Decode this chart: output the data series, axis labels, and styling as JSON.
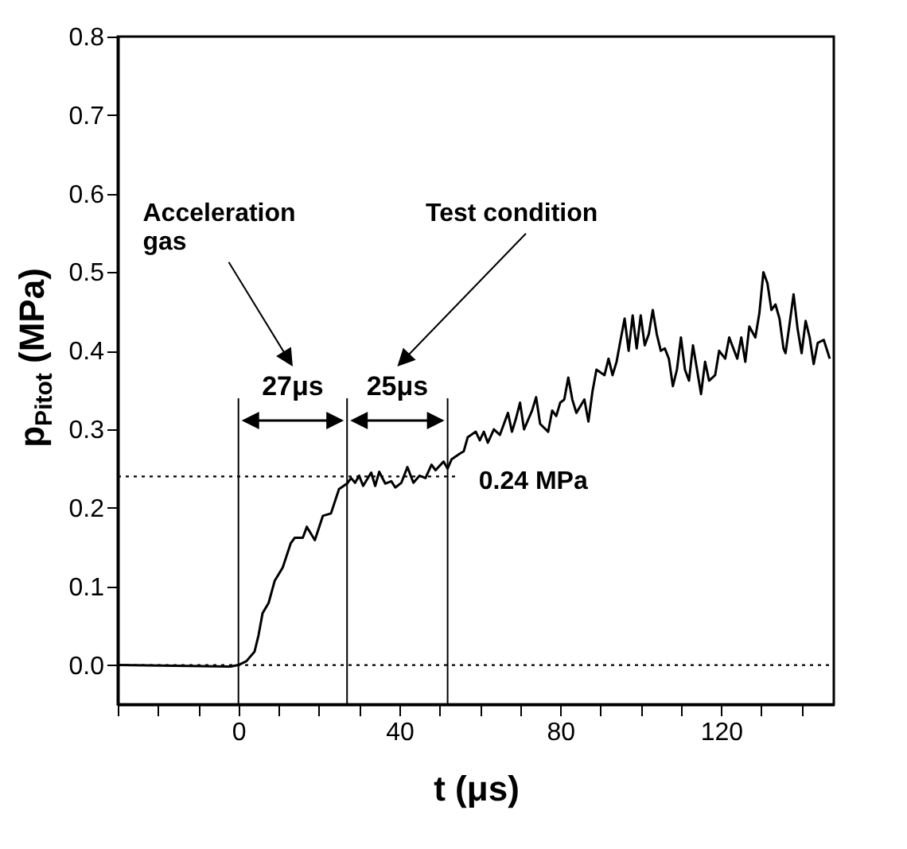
{
  "chart_data": {
    "type": "line",
    "xlabel": "t (μs)",
    "ylabel": "p$_{Pitot}$ (MPa)",
    "xlim": [
      -30,
      148
    ],
    "ylim": [
      -0.05,
      0.8
    ],
    "xticks": [
      {
        "value": -30,
        "label": null
      },
      {
        "value": -20,
        "label": null
      },
      {
        "value": -10,
        "label": null
      },
      0,
      {
        "value": 10,
        "label": null
      },
      {
        "value": 20,
        "label": null
      },
      {
        "value": 30,
        "label": null
      },
      40,
      {
        "value": 50,
        "label": null
      },
      {
        "value": 60,
        "label": null
      },
      {
        "value": 70,
        "label": null
      },
      80,
      {
        "value": 90,
        "label": null
      },
      {
        "value": 100,
        "label": null
      },
      {
        "value": 110,
        "label": null
      },
      120,
      {
        "value": 130,
        "label": null
      },
      {
        "value": 140,
        "label": null
      }
    ],
    "yticks": [
      {
        "value": 0,
        "label": "0.0"
      },
      0.1,
      0.2,
      0.3,
      0.4,
      0.5,
      0.6,
      0.7,
      0.8
    ],
    "x": [
      -30,
      -2,
      0,
      2,
      4,
      5,
      6,
      7.5,
      9,
      11,
      13,
      14,
      16,
      17,
      19,
      21,
      23,
      25,
      27,
      28,
      29,
      30,
      31,
      33,
      34,
      35,
      36.5,
      38,
      39,
      40.5,
      42,
      43.5,
      45,
      46.5,
      48,
      49,
      51,
      52,
      53,
      55,
      56,
      57,
      59,
      60,
      61,
      62,
      63.5,
      65,
      66,
      67,
      68,
      69,
      70,
      71,
      73,
      74,
      75,
      77,
      78,
      79,
      80,
      81,
      82,
      83,
      84,
      86,
      87,
      88,
      89,
      91,
      92,
      93,
      94,
      95,
      96,
      97,
      98,
      99,
      100,
      101,
      102,
      103,
      104,
      105,
      106,
      107,
      108,
      109,
      110,
      111,
      112,
      113,
      114,
      115,
      116,
      117,
      118.5,
      119.5,
      121,
      122,
      124,
      125,
      126,
      127,
      128.5,
      129.5,
      130.5,
      131.5,
      132.5,
      133.5,
      134.5,
      135.5,
      136,
      137,
      138,
      139,
      140,
      141,
      142,
      143,
      144,
      145.5,
      147
    ],
    "series": [
      {
        "color": "#000000",
        "values": [
          0,
          -0.002,
          0,
          0.005,
          0.017,
          0.038,
          0.066,
          0.079,
          0.107,
          0.124,
          0.155,
          0.162,
          0.162,
          0.176,
          0.159,
          0.19,
          0.193,
          0.224,
          0.231,
          0.238,
          0.232,
          0.241,
          0.228,
          0.245,
          0.228,
          0.246,
          0.231,
          0.234,
          0.226,
          0.232,
          0.252,
          0.232,
          0.241,
          0.238,
          0.255,
          0.248,
          0.259,
          0.25,
          0.262,
          0.269,
          0.272,
          0.29,
          0.297,
          0.286,
          0.297,
          0.283,
          0.3,
          0.293,
          0.307,
          0.321,
          0.297,
          0.314,
          0.334,
          0.3,
          0.324,
          0.341,
          0.307,
          0.297,
          0.324,
          0.317,
          0.334,
          0.338,
          0.366,
          0.338,
          0.321,
          0.338,
          0.31,
          0.348,
          0.376,
          0.369,
          0.39,
          0.369,
          0.386,
          0.414,
          0.441,
          0.4,
          0.445,
          0.403,
          0.445,
          0.407,
          0.421,
          0.452,
          0.421,
          0.4,
          0.403,
          0.39,
          0.355,
          0.376,
          0.417,
          0.376,
          0.362,
          0.407,
          0.376,
          0.345,
          0.386,
          0.362,
          0.369,
          0.4,
          0.39,
          0.417,
          0.39,
          0.417,
          0.386,
          0.431,
          0.417,
          0.448,
          0.5,
          0.486,
          0.452,
          0.459,
          0.441,
          0.403,
          0.397,
          0.434,
          0.472,
          0.428,
          0.397,
          0.438,
          0.417,
          0.383,
          0.41,
          0.414,
          0.39
        ]
      }
    ],
    "ref_lines": [
      {
        "axis": "y",
        "value": 0,
        "line_style": "dotted"
      },
      {
        "axis": "y",
        "value": 0.24,
        "label": "0.24 MPa",
        "line_style": "dotted"
      },
      {
        "axis": "x",
        "value": 0,
        "line_style": "solid"
      },
      {
        "axis": "x",
        "value": 27,
        "line_style": "solid"
      },
      {
        "axis": "x",
        "value": 52,
        "line_style": "solid"
      }
    ],
    "annotations": [
      "Acceleration\ngas",
      "Test condition",
      "27μs",
      "25μs"
    ]
  }
}
